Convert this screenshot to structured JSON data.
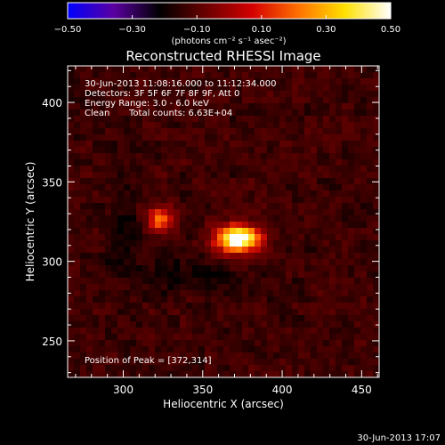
{
  "colorbar": {
    "ticks": [
      -0.5,
      -0.3,
      -0.1,
      0.1,
      0.3,
      0.5
    ],
    "tick_labels": [
      "−0.50",
      "−0.30",
      "−0.10",
      "0.10",
      "0.30",
      "0.50"
    ],
    "range": [
      -0.5,
      0.5
    ],
    "units": "(photons cm⁻² s⁻¹ asec⁻²)",
    "colors": [
      "#0000ff",
      "#5a00a0",
      "#000000",
      "#6a0000",
      "#d40000",
      "#ff7000",
      "#ffe000",
      "#ffffff"
    ]
  },
  "chart_data": {
    "type": "heatmap",
    "title": "Reconstructed RHESSI Image",
    "xlabel": "Heliocentric X (arcsec)",
    "ylabel": "Heliocentric Y (arcsec)",
    "xlim": [
      265,
      461
    ],
    "ylim": [
      227,
      423
    ],
    "xticks": [
      300,
      350,
      400,
      450
    ],
    "yticks": [
      250,
      300,
      350,
      400
    ],
    "sources": [
      {
        "x": 372,
        "y": 314,
        "peak": 0.5
      },
      {
        "x": 323,
        "y": 326,
        "peak": 0.28
      }
    ],
    "background_level": 0.07,
    "annotations": [
      "30-Jun-2013 11:08:16.000 to 11:12:34.000",
      "Detectors: 3F 5F 6F 7F 8F 9F, Att 0",
      "Energy Range: 3.0 - 6.0 keV",
      "Clean",
      "Total counts: 6.63E+04"
    ],
    "peak_label": "Position of Peak = [372,314]"
  },
  "footer": {
    "timestamp": "30-Jun-2013 17:07"
  }
}
